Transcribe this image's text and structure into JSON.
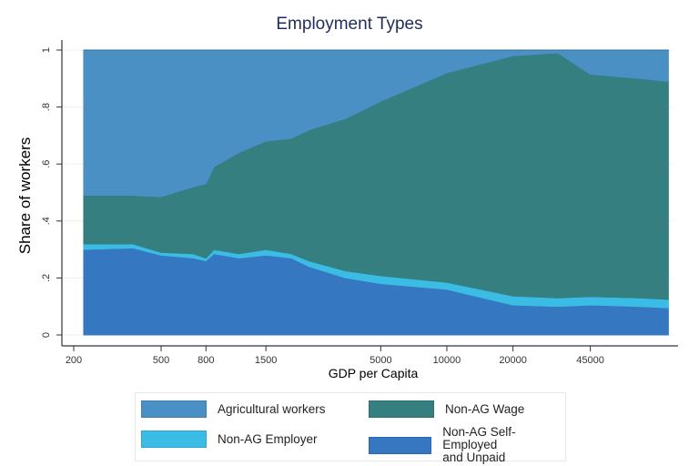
{
  "chart_data": {
    "type": "area",
    "stacked": true,
    "title": "Employment Types",
    "xlabel": "GDP per Capita",
    "ylabel": "Share of workers",
    "xscale": "log",
    "xlim": [
      200,
      102000
    ],
    "ylim": [
      0,
      1
    ],
    "xticks": [
      200,
      500,
      800,
      1500,
      5000,
      10000,
      20000,
      45000
    ],
    "yticks": [
      0,
      0.2,
      0.4,
      0.6,
      0.8,
      1
    ],
    "ytick_labels": [
      "0",
      ".2",
      ".4",
      ".6",
      ".8",
      "1"
    ],
    "legend_position": "bottom",
    "x": [
      222,
      372,
      500,
      700,
      800,
      870,
      1130,
      1500,
      1960,
      2360,
      3470,
      5000,
      10000,
      20000,
      32000,
      45000,
      75000,
      102000
    ],
    "series": [
      {
        "name": "Non-AG Self-Employed and Unpaid",
        "color": "#3677c2",
        "values": [
          0.3,
          0.305,
          0.28,
          0.27,
          0.26,
          0.285,
          0.27,
          0.28,
          0.27,
          0.24,
          0.2,
          0.18,
          0.16,
          0.105,
          0.1,
          0.105,
          0.1,
          0.095
        ]
      },
      {
        "name": "Non-AG Employer",
        "color": "#3bbce4",
        "values": [
          0.02,
          0.015,
          0.01,
          0.015,
          0.01,
          0.015,
          0.015,
          0.02,
          0.015,
          0.02,
          0.025,
          0.028,
          0.025,
          0.032,
          0.03,
          0.03,
          0.03,
          0.03
        ]
      },
      {
        "name": "Non-AG Wage",
        "color": "#367f80",
        "values": [
          0.17,
          0.17,
          0.195,
          0.235,
          0.26,
          0.29,
          0.355,
          0.38,
          0.405,
          0.46,
          0.535,
          0.612,
          0.735,
          0.843,
          0.86,
          0.78,
          0.77,
          0.765
        ]
      },
      {
        "name": "Agricultural workers",
        "color": "#4a90c4",
        "values": [
          0.51,
          0.51,
          0.515,
          0.48,
          0.47,
          0.41,
          0.36,
          0.32,
          0.31,
          0.28,
          0.24,
          0.18,
          0.08,
          0.02,
          0.01,
          0.085,
          0.1,
          0.11
        ]
      }
    ]
  },
  "legend": {
    "agri": "Agricultural workers",
    "wage": "Non-AG Wage",
    "employer": "Non-AG Employer",
    "self_line1": "Non-AG Self-Employed",
    "self_line2": "and Unpaid"
  }
}
